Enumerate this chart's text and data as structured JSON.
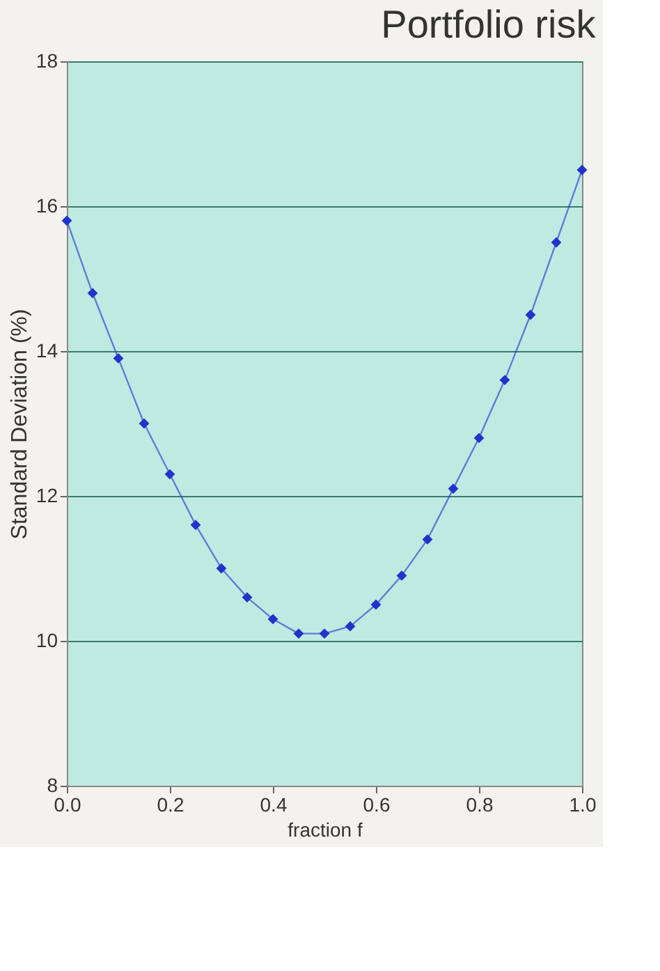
{
  "chart_data": {
    "type": "line",
    "title": "Portfolio risk",
    "xlabel": "fraction f",
    "ylabel": "Standard Deviation (%)",
    "x": [
      0.0,
      0.05,
      0.1,
      0.15,
      0.2,
      0.25,
      0.3,
      0.35,
      0.4,
      0.45,
      0.5,
      0.55,
      0.6,
      0.65,
      0.7,
      0.75,
      0.8,
      0.85,
      0.9,
      0.95,
      1.0
    ],
    "series": [
      {
        "color": "#2233cc",
        "values": [
          15.8,
          14.8,
          13.9,
          13.0,
          12.3,
          11.6,
          11.0,
          10.6,
          10.3,
          10.1,
          10.1,
          10.2,
          10.5,
          10.9,
          11.4,
          12.1,
          12.8,
          13.6,
          14.5,
          15.5,
          16.5
        ]
      }
    ],
    "xlim": [
      0.0,
      1.0
    ],
    "xticks": [
      {
        "value": 0,
        "label": "0.0"
      },
      {
        "value": 0.2,
        "label": "0.2"
      },
      {
        "value": 0.4,
        "label": "0.4"
      },
      {
        "value": 0.6,
        "label": "0.6"
      },
      {
        "value": 0.8,
        "label": "0.8"
      },
      {
        "value": 1,
        "label": "1.0"
      }
    ],
    "ylim": [
      8,
      18
    ],
    "yticks": [
      8,
      10,
      12,
      14,
      16,
      18
    ],
    "grid": "y",
    "marker": "diamond",
    "line_style": "solid"
  }
}
